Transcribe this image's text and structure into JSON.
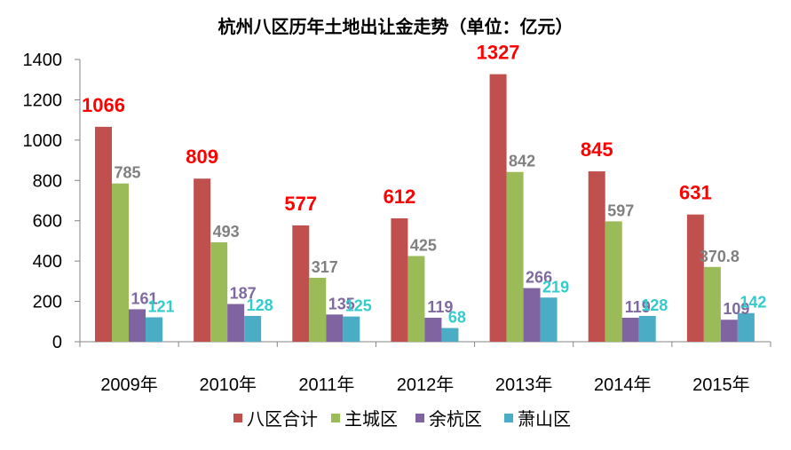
{
  "title": "杭州八区历年土地出让金走势（单位：亿元）",
  "chart_data": {
    "type": "bar",
    "title": "杭州八区历年土地出让金走势（单位：亿元）",
    "categories": [
      "2009年",
      "2010年",
      "2011年",
      "2012年",
      "2013年",
      "2014年",
      "2015年"
    ],
    "series": [
      {
        "name": "八区合计",
        "color": "#C0504D",
        "label_color": "#FF0000",
        "values": [
          1066,
          809,
          577,
          612,
          1327,
          845,
          631
        ],
        "labels": [
          "1066",
          "809",
          "577",
          "612",
          "1327",
          "845",
          "631"
        ]
      },
      {
        "name": "主城区",
        "color": "#9BBB59",
        "label_color": "#808080",
        "values": [
          785,
          493,
          317,
          425,
          842,
          597,
          370.8
        ],
        "labels": [
          "785",
          "493",
          "317",
          "425",
          "842",
          "597",
          "370.8"
        ]
      },
      {
        "name": "余杭区",
        "color": "#8064A2",
        "label_color": "#7F6A9F",
        "values": [
          161,
          187,
          135,
          119,
          266,
          119,
          109
        ],
        "labels": [
          "161",
          "187",
          "135",
          "119",
          "266",
          "119",
          "109"
        ]
      },
      {
        "name": "萧山区",
        "color": "#4BACC6",
        "label_color": "#33CCCC",
        "values": [
          121,
          128,
          125,
          68,
          219,
          128,
          142
        ],
        "labels": [
          "121",
          "128",
          "125",
          "68",
          "219",
          "128",
          "142"
        ]
      }
    ],
    "ylim": [
      0,
      1400
    ],
    "yticks": [
      0,
      200,
      400,
      600,
      800,
      1000,
      1200,
      1400
    ],
    "ytick_labels": [
      "0",
      "200",
      "400",
      "600",
      "800",
      "1000",
      "1200",
      "1400"
    ],
    "grid": false,
    "legend_position": "bottom"
  }
}
